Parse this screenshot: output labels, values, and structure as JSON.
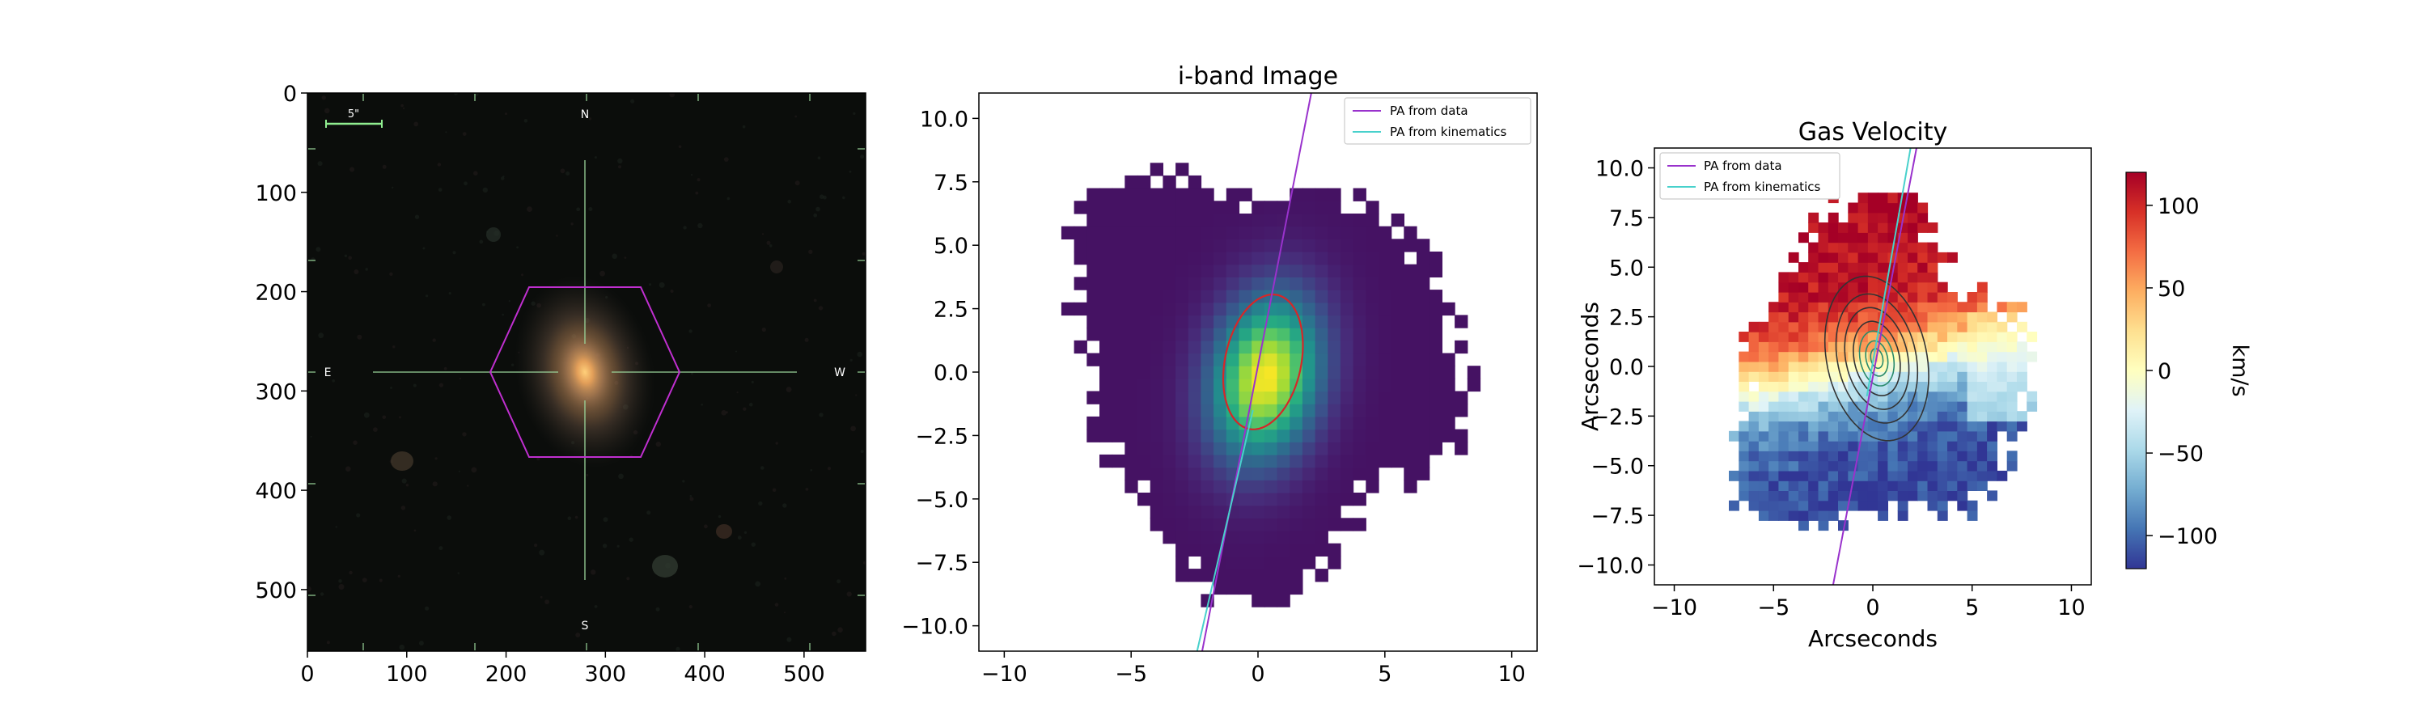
{
  "chart_data": [
    {
      "type": "image",
      "name": "sdss-cutout",
      "title": "",
      "xlim": [
        0,
        562
      ],
      "ylim": [
        562,
        0
      ],
      "xticks": [
        0,
        100,
        200,
        300,
        400,
        500
      ],
      "yticks": [
        0,
        100,
        200,
        300,
        400,
        500
      ],
      "compass": {
        "north": "N",
        "south": "S",
        "east": "E",
        "west": "W"
      },
      "scalebar_label": "5\"",
      "galaxy_center": [
        280,
        280
      ],
      "ifu_hexagon": {
        "center": [
          280,
          280
        ],
        "radius": 95
      },
      "colors": {
        "hexagon": "#c02fd0",
        "crosshair": "#9ad49a",
        "scalebar": "#90ee90",
        "background": "#0b0d0b"
      }
    },
    {
      "type": "heatmap",
      "name": "i-band-image",
      "title": "i-band Image",
      "xlabel": "",
      "ylabel": "",
      "xlim": [
        -11,
        11
      ],
      "ylim": [
        11,
        -11
      ],
      "xticks": [
        -10,
        -5,
        0,
        5,
        10
      ],
      "yticks": [
        -10.0,
        -7.5,
        -5.0,
        -2.5,
        0.0,
        2.5,
        5.0,
        7.5,
        10.0
      ],
      "colormap": "viridis",
      "pixel_size": 0.5,
      "source": {
        "x0": 0.3,
        "y0": 0.3,
        "sigma_major": 2.2,
        "sigma_minor": 1.4,
        "angle_deg": -12
      },
      "half_light_ellipse": {
        "x0": 0.2,
        "y0": 0.4,
        "a": 2.7,
        "b": 1.5,
        "angle_deg": -12,
        "color": "#d62728"
      },
      "series": [
        {
          "name": "PA from data",
          "color": "#9932cc",
          "points": [
            [
              -2.2,
              -11
            ],
            [
              2.1,
              11
            ]
          ]
        },
        {
          "name": "PA from kinematics",
          "color": "#48d1cc",
          "points": [
            [
              -2.4,
              -11
            ],
            [
              -0.2,
              -1.5
            ]
          ]
        }
      ],
      "legend": {
        "location": "top-right",
        "entries": [
          "PA from data",
          "PA from kinematics"
        ]
      }
    },
    {
      "type": "heatmap",
      "name": "gas-velocity",
      "title": "Gas Velocity",
      "xlabel": "Arcseconds",
      "ylabel": "Arcseconds",
      "xlim": [
        -11,
        11
      ],
      "ylim": [
        -11,
        11
      ],
      "xticks": [
        -10,
        -5,
        0,
        5,
        10
      ],
      "yticks": [
        10.0,
        7.5,
        5.0,
        2.5,
        0.0,
        -2.5,
        -5.0,
        -7.5,
        -10.0
      ],
      "colormap": "RdYlBu_r",
      "vlim": [
        -120,
        120
      ],
      "colorbar": {
        "label": "km/s",
        "ticks": [
          100,
          50,
          0,
          -50,
          -100
        ]
      },
      "pixel_size": 0.5,
      "contours": {
        "x0": 0.2,
        "y0": 0.4,
        "radii_a": [
          4.2,
          3.3,
          2.6,
          1.9,
          1.4,
          0.9,
          0.5
        ],
        "axis_ratio": 0.6,
        "angle_deg": -12,
        "color": "#333333"
      },
      "series": [
        {
          "name": "PA from data",
          "color": "#9932cc",
          "points": [
            [
              -2.0,
              -11
            ],
            [
              2.2,
              11
            ]
          ]
        },
        {
          "name": "PA from kinematics",
          "color": "#48d1cc",
          "points": [
            [
              -0.3,
              -1.5
            ],
            [
              1.9,
              11
            ]
          ]
        }
      ],
      "legend": {
        "location": "top-left",
        "entries": [
          "PA from data",
          "PA from kinematics"
        ]
      }
    }
  ]
}
